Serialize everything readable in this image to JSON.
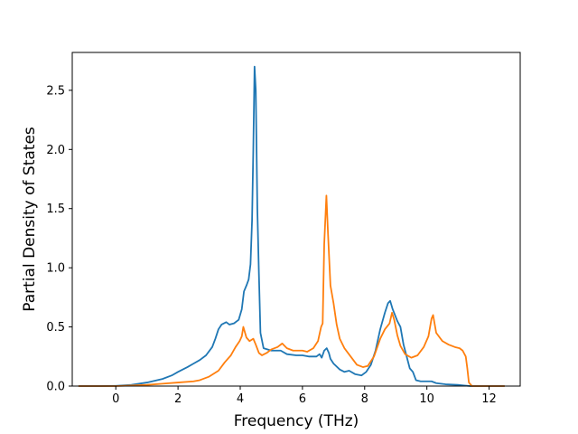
{
  "chart_data": {
    "type": "line",
    "title": "",
    "xlabel": "Frequency (THz)",
    "ylabel": "Partial Density of States",
    "xlim": [
      -1.4,
      13.0
    ],
    "ylim": [
      0,
      2.82
    ],
    "xticks": [
      0,
      2,
      4,
      6,
      8,
      10,
      12
    ],
    "xtick_labels": [
      "0",
      "2",
      "4",
      "6",
      "8",
      "10",
      "12"
    ],
    "yticks": [
      0.0,
      0.5,
      1.0,
      1.5,
      2.0,
      2.5
    ],
    "ytick_labels": [
      "0.0",
      "0.5",
      "1.0",
      "1.5",
      "2.0",
      "2.5"
    ],
    "grid": false,
    "legend": "none",
    "series": [
      {
        "color": "#1f77b4",
        "points": [
          [
            -1.2,
            0.0
          ],
          [
            -0.5,
            0.0
          ],
          [
            0.0,
            0.002
          ],
          [
            0.5,
            0.01
          ],
          [
            1.0,
            0.03
          ],
          [
            1.5,
            0.06
          ],
          [
            1.8,
            0.09
          ],
          [
            2.0,
            0.12
          ],
          [
            2.3,
            0.16
          ],
          [
            2.5,
            0.19
          ],
          [
            2.7,
            0.22
          ],
          [
            2.9,
            0.26
          ],
          [
            3.1,
            0.33
          ],
          [
            3.2,
            0.4
          ],
          [
            3.3,
            0.48
          ],
          [
            3.4,
            0.52
          ],
          [
            3.55,
            0.54
          ],
          [
            3.65,
            0.52
          ],
          [
            3.8,
            0.53
          ],
          [
            3.95,
            0.56
          ],
          [
            4.05,
            0.65
          ],
          [
            4.12,
            0.8
          ],
          [
            4.2,
            0.85
          ],
          [
            4.27,
            0.9
          ],
          [
            4.33,
            1.03
          ],
          [
            4.38,
            1.4
          ],
          [
            4.42,
            2.0
          ],
          [
            4.46,
            2.7
          ],
          [
            4.5,
            2.5
          ],
          [
            4.55,
            1.5
          ],
          [
            4.6,
            0.95
          ],
          [
            4.65,
            0.45
          ],
          [
            4.75,
            0.32
          ],
          [
            5.0,
            0.3
          ],
          [
            5.3,
            0.3
          ],
          [
            5.5,
            0.27
          ],
          [
            5.8,
            0.26
          ],
          [
            6.0,
            0.26
          ],
          [
            6.2,
            0.25
          ],
          [
            6.45,
            0.25
          ],
          [
            6.55,
            0.27
          ],
          [
            6.62,
            0.24
          ],
          [
            6.7,
            0.3
          ],
          [
            6.78,
            0.32
          ],
          [
            6.85,
            0.28
          ],
          [
            6.9,
            0.23
          ],
          [
            7.0,
            0.19
          ],
          [
            7.2,
            0.14
          ],
          [
            7.35,
            0.12
          ],
          [
            7.5,
            0.13
          ],
          [
            7.7,
            0.1
          ],
          [
            7.9,
            0.09
          ],
          [
            8.05,
            0.12
          ],
          [
            8.2,
            0.18
          ],
          [
            8.35,
            0.3
          ],
          [
            8.5,
            0.48
          ],
          [
            8.65,
            0.62
          ],
          [
            8.75,
            0.7
          ],
          [
            8.82,
            0.72
          ],
          [
            8.9,
            0.65
          ],
          [
            9.05,
            0.55
          ],
          [
            9.15,
            0.5
          ],
          [
            9.25,
            0.35
          ],
          [
            9.35,
            0.25
          ],
          [
            9.45,
            0.15
          ],
          [
            9.55,
            0.12
          ],
          [
            9.65,
            0.05
          ],
          [
            9.8,
            0.04
          ],
          [
            10.0,
            0.04
          ],
          [
            10.15,
            0.04
          ],
          [
            10.3,
            0.025
          ],
          [
            10.6,
            0.015
          ],
          [
            11.0,
            0.01
          ],
          [
            11.2,
            0.005
          ],
          [
            11.4,
            0.0
          ],
          [
            12.5,
            0.0
          ]
        ]
      },
      {
        "color": "#ff7f0e",
        "points": [
          [
            -1.2,
            0.0
          ],
          [
            -0.5,
            0.0
          ],
          [
            0.0,
            0.0
          ],
          [
            0.5,
            0.005
          ],
          [
            1.0,
            0.01
          ],
          [
            1.5,
            0.02
          ],
          [
            2.0,
            0.03
          ],
          [
            2.5,
            0.04
          ],
          [
            2.7,
            0.05
          ],
          [
            3.0,
            0.08
          ],
          [
            3.3,
            0.13
          ],
          [
            3.5,
            0.2
          ],
          [
            3.7,
            0.26
          ],
          [
            3.85,
            0.33
          ],
          [
            3.98,
            0.38
          ],
          [
            4.05,
            0.42
          ],
          [
            4.1,
            0.5
          ],
          [
            4.2,
            0.41
          ],
          [
            4.3,
            0.38
          ],
          [
            4.42,
            0.4
          ],
          [
            4.5,
            0.35
          ],
          [
            4.6,
            0.28
          ],
          [
            4.7,
            0.26
          ],
          [
            4.85,
            0.28
          ],
          [
            5.0,
            0.31
          ],
          [
            5.2,
            0.33
          ],
          [
            5.35,
            0.36
          ],
          [
            5.5,
            0.32
          ],
          [
            5.7,
            0.3
          ],
          [
            6.0,
            0.3
          ],
          [
            6.15,
            0.29
          ],
          [
            6.35,
            0.32
          ],
          [
            6.5,
            0.38
          ],
          [
            6.6,
            0.5
          ],
          [
            6.65,
            0.53
          ],
          [
            6.7,
            1.2
          ],
          [
            6.77,
            1.61
          ],
          [
            6.82,
            1.3
          ],
          [
            6.9,
            0.85
          ],
          [
            7.0,
            0.7
          ],
          [
            7.1,
            0.52
          ],
          [
            7.2,
            0.4
          ],
          [
            7.35,
            0.32
          ],
          [
            7.55,
            0.25
          ],
          [
            7.75,
            0.18
          ],
          [
            7.95,
            0.16
          ],
          [
            8.1,
            0.17
          ],
          [
            8.3,
            0.25
          ],
          [
            8.5,
            0.4
          ],
          [
            8.65,
            0.48
          ],
          [
            8.8,
            0.53
          ],
          [
            8.88,
            0.62
          ],
          [
            8.95,
            0.56
          ],
          [
            9.05,
            0.43
          ],
          [
            9.15,
            0.34
          ],
          [
            9.3,
            0.27
          ],
          [
            9.5,
            0.24
          ],
          [
            9.7,
            0.26
          ],
          [
            9.9,
            0.33
          ],
          [
            10.05,
            0.42
          ],
          [
            10.15,
            0.57
          ],
          [
            10.2,
            0.6
          ],
          [
            10.3,
            0.45
          ],
          [
            10.5,
            0.38
          ],
          [
            10.7,
            0.35
          ],
          [
            10.9,
            0.33
          ],
          [
            11.05,
            0.32
          ],
          [
            11.15,
            0.3
          ],
          [
            11.25,
            0.25
          ],
          [
            11.3,
            0.15
          ],
          [
            11.35,
            0.03
          ],
          [
            11.45,
            0.0
          ],
          [
            12.5,
            0.0
          ]
        ]
      }
    ]
  }
}
